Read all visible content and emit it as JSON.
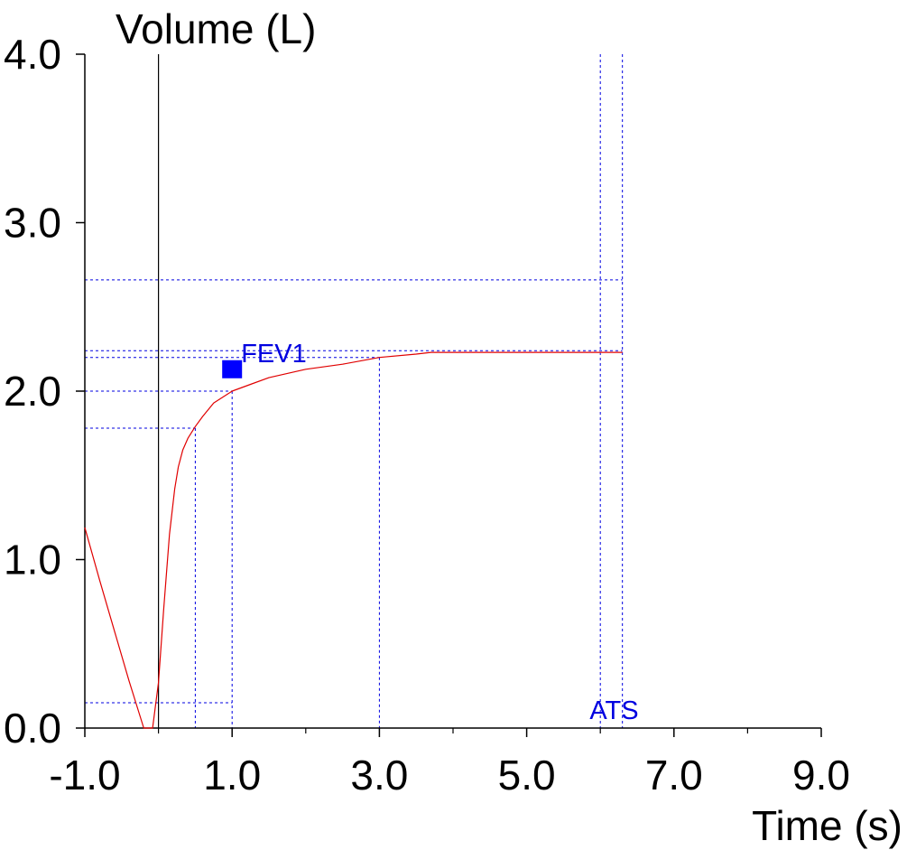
{
  "chart_data": {
    "type": "line",
    "title": "",
    "xlabel": "Time (s)",
    "ylabel": "Volume (L)",
    "xlim": [
      -1.0,
      9.0
    ],
    "ylim": [
      0.0,
      4.0
    ],
    "x_ticks": [
      "-1.0",
      "1.0",
      "3.0",
      "5.0",
      "7.0",
      "9.0"
    ],
    "x_tick_values": [
      -1.0,
      1.0,
      3.0,
      5.0,
      7.0,
      9.0
    ],
    "x_minor_ticks": [
      0.0,
      2.0,
      4.0,
      6.0,
      8.0
    ],
    "y_ticks": [
      "0.0",
      "1.0",
      "2.0",
      "3.0",
      "4.0"
    ],
    "y_tick_values": [
      0.0,
      1.0,
      2.0,
      3.0,
      4.0
    ],
    "grid": false,
    "line_color": "#e00000",
    "ref_color": "#0000e0",
    "series": [
      {
        "x": [
          -1.0,
          -0.8,
          -0.6,
          -0.4,
          -0.2,
          -0.08,
          0.0,
          0.07,
          0.15,
          0.22,
          0.27,
          0.33,
          0.4,
          0.5,
          0.6,
          0.75,
          1.0,
          1.25,
          1.5,
          2.0,
          2.5,
          3.0,
          3.5,
          3.7,
          4.0,
          5.0,
          6.0,
          6.3
        ],
        "y": [
          1.19,
          0.88,
          0.58,
          0.28,
          0.0,
          0.0,
          0.27,
          0.7,
          1.15,
          1.42,
          1.55,
          1.65,
          1.72,
          1.79,
          1.85,
          1.93,
          2.0,
          2.04,
          2.08,
          2.13,
          2.16,
          2.2,
          2.22,
          2.23,
          2.23,
          2.23,
          2.23,
          2.23
        ]
      }
    ],
    "vertical_markers": [
      {
        "x": 0.0,
        "style": "solid"
      },
      {
        "x": 0.5,
        "style": "dashed",
        "y_top": 1.78
      },
      {
        "x": 1.0,
        "style": "dashed",
        "y_top": 2.0
      },
      {
        "x": 3.0,
        "style": "dashed",
        "y_top": 2.2
      },
      {
        "x": 6.0,
        "style": "dashed",
        "y_top": 4.0
      },
      {
        "x": 6.3,
        "style": "dashed",
        "y_top": 4.0
      }
    ],
    "horizontal_markers": [
      {
        "y": 2.66,
        "x_end": 6.3
      },
      {
        "y": 2.24,
        "x_end": 6.3
      },
      {
        "y": 2.2,
        "x_end": 3.0
      },
      {
        "y": 2.0,
        "x_end": 1.0
      },
      {
        "y": 1.78,
        "x_end": 0.5
      },
      {
        "y": 0.15,
        "x_end": 1.0
      }
    ],
    "annotations": [
      {
        "text": "FEV1",
        "x": 1.0,
        "y": 2.13,
        "marker": "square"
      },
      {
        "text": "ATS",
        "x": 6.1,
        "y": 0.0
      }
    ]
  }
}
